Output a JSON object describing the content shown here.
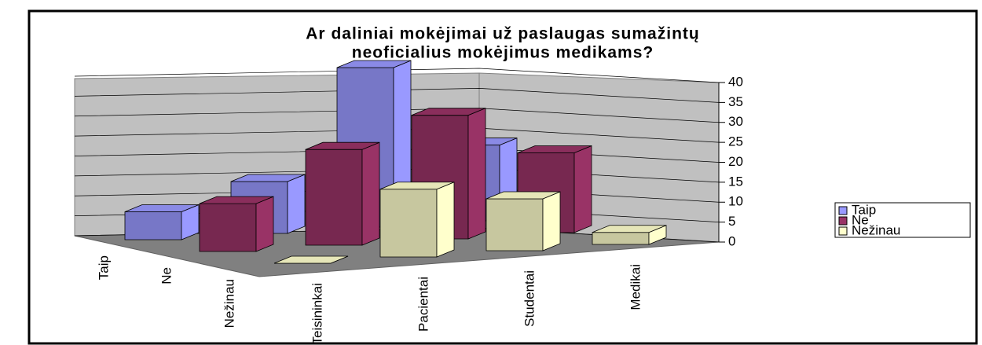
{
  "chart_data": {
    "type": "bar3d",
    "title": [
      "Ar daliniai mokėjimai už paslaugas sumažintų",
      "neoficialius mokėjimus medikams?"
    ],
    "categories": [
      "Teisininkai",
      "Pacientai",
      "Studentai",
      "Medikai"
    ],
    "series": [
      {
        "name": "Taip",
        "color": "#9999ff",
        "values": [
          7,
          13,
          40,
          19
        ]
      },
      {
        "name": "Ne",
        "color": "#993366",
        "values": [
          12,
          24,
          31,
          20
        ]
      },
      {
        "name": "Nežinau",
        "color": "#ffffcc",
        "values": [
          0,
          17,
          13,
          3
        ]
      }
    ],
    "ylim": [
      0,
      40
    ],
    "yticks": [
      0,
      5,
      10,
      15,
      20,
      25,
      30,
      35,
      40
    ],
    "grid": true,
    "legend": "right"
  }
}
